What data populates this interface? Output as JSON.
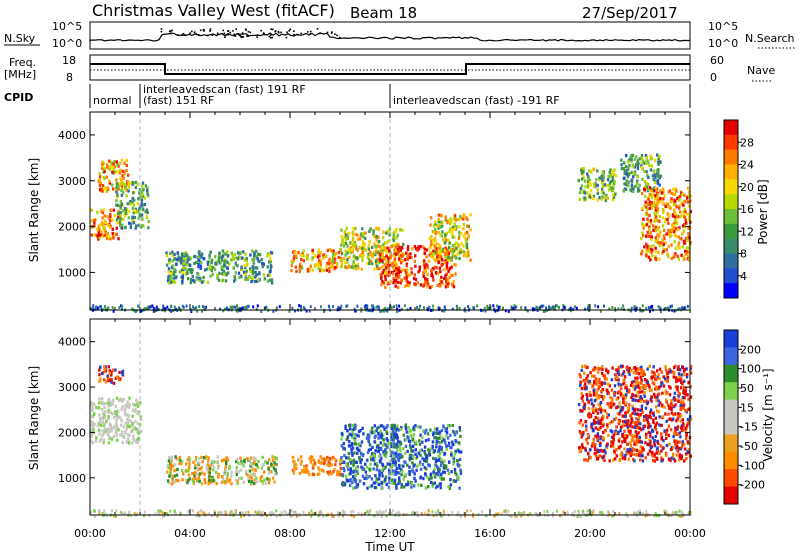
{
  "header": {
    "title": "Christmas Valley West (fitACF)",
    "beam": "Beam 18",
    "date": "27/Sep/2017"
  },
  "top_panel": {
    "nsky_label": "N.Sky",
    "nsky_ticks": [
      "10^5",
      "10^0"
    ],
    "nsearch_label": "N.Search",
    "nsearch_ticks": [
      "10^5",
      "10^0"
    ],
    "freq_label_1": "Freq.",
    "freq_label_2": "[MHz]",
    "freq_ticks": [
      "18",
      "8"
    ],
    "nave_label": "Nave",
    "nave_ticks": [
      "60",
      "0"
    ],
    "cpid_label": "CPID",
    "cpid_segments": [
      {
        "label": "normal"
      },
      {
        "label": "interleavedscan (fast) 191 RF",
        "label2": "(fast) 151 RF"
      },
      {
        "label": "interleavedscan (fast) -191 RF"
      }
    ]
  },
  "chart_data": [
    {
      "type": "heatmap",
      "name": "power",
      "xlabel": "Time UT",
      "ylabel": "Slant Range [km]",
      "xlim": [
        0,
        24
      ],
      "ylim": [
        180,
        4500
      ],
      "y_ticks": [
        1000,
        2000,
        3000,
        4000
      ],
      "colorbar_label": "Power [dB]",
      "colorbar_ticks": [
        "28",
        "24",
        "20",
        "16",
        "12",
        "8",
        "4"
      ],
      "colorbar_colors": [
        "#e60000",
        "#ff3a00",
        "#ff7a00",
        "#ffb000",
        "#f7d800",
        "#b7d800",
        "#6dbf3a",
        "#3c9a3c",
        "#3c8c6c",
        "#2f6fa0",
        "#1f4fd0",
        "#0000ff"
      ],
      "regions": [
        {
          "t": [
            0.0,
            1.1
          ],
          "r": [
            1750,
            2400
          ],
          "level": 0.8
        },
        {
          "t": [
            0.3,
            1.5
          ],
          "r": [
            2800,
            3500
          ],
          "level": 0.7
        },
        {
          "t": [
            1.0,
            2.3
          ],
          "r": [
            2000,
            3000
          ],
          "level": 0.4
        },
        {
          "t": [
            3.0,
            7.3
          ],
          "r": [
            800,
            1500
          ],
          "level": 0.35
        },
        {
          "t": [
            8.0,
            10.0
          ],
          "r": [
            1050,
            1550
          ],
          "level": 0.7
        },
        {
          "t": [
            10.0,
            12.5
          ],
          "r": [
            1100,
            2000
          ],
          "level": 0.55
        },
        {
          "t": [
            11.5,
            14.6
          ],
          "r": [
            700,
            1600
          ],
          "level": 0.9
        },
        {
          "t": [
            13.5,
            15.2
          ],
          "r": [
            1300,
            2300
          ],
          "level": 0.6
        },
        {
          "t": [
            19.5,
            21.0
          ],
          "r": [
            2600,
            3300
          ],
          "level": 0.45
        },
        {
          "t": [
            21.2,
            22.8
          ],
          "r": [
            2800,
            3600
          ],
          "level": 0.35
        },
        {
          "t": [
            22.0,
            24.0
          ],
          "r": [
            1300,
            2900
          ],
          "level": 0.75
        }
      ]
    },
    {
      "type": "heatmap",
      "name": "velocity",
      "xlabel": "Time UT",
      "ylabel": "Slant Range [km]",
      "xlim": [
        0,
        24
      ],
      "ylim": [
        180,
        4500
      ],
      "y_ticks": [
        1000,
        2000,
        3000,
        4000
      ],
      "x_tick_labels": [
        "00:00",
        "04:00",
        "08:00",
        "12:00",
        "16:00",
        "20:00",
        "00:00"
      ],
      "colorbar_label": "Velocity [m s⁻¹]",
      "colorbar_ticks": [
        "200",
        "100",
        "50",
        "15",
        "-15",
        "-50",
        "-100",
        "-200"
      ],
      "colorbar_colors": [
        "#1a3fd8",
        "#3a66e0",
        "#2e8b2e",
        "#7cd04a",
        "#c8c8c0",
        "#c8c8c0",
        "#f0a020",
        "#ff8a00",
        "#ff4a00",
        "#e60000"
      ],
      "regions": [
        {
          "t": [
            0.0,
            2.0
          ],
          "r": [
            1800,
            2800
          ],
          "level": "gray"
        },
        {
          "t": [
            0.3,
            1.3
          ],
          "r": [
            3100,
            3500
          ],
          "level": "red"
        },
        {
          "t": [
            3.0,
            7.5
          ],
          "r": [
            900,
            1500
          ],
          "level": "mixed-green-orange"
        },
        {
          "t": [
            8.0,
            10.0
          ],
          "r": [
            1100,
            1500
          ],
          "level": "orange"
        },
        {
          "t": [
            10.0,
            14.8
          ],
          "r": [
            800,
            2200
          ],
          "level": "blue-green"
        },
        {
          "t": [
            19.5,
            24.0
          ],
          "r": [
            1400,
            3500
          ],
          "level": "red"
        }
      ]
    }
  ]
}
